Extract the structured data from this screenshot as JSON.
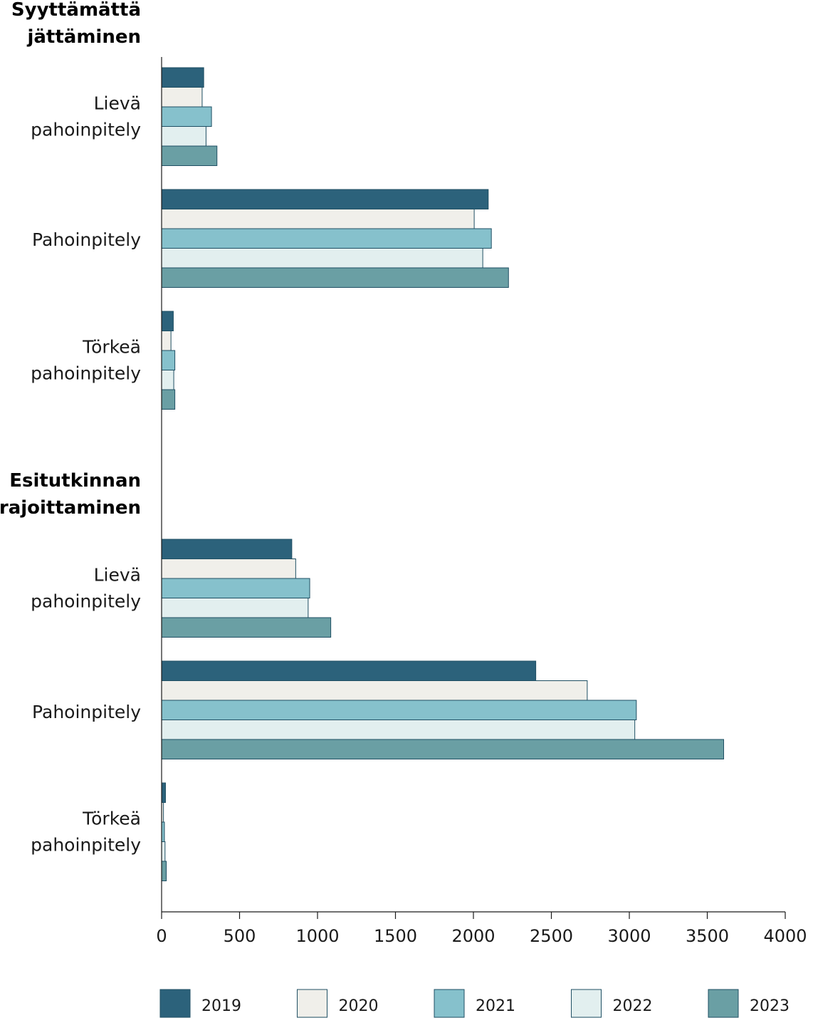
{
  "chart_data": {
    "type": "bar",
    "orientation": "horizontal",
    "xlim": [
      0,
      4000
    ],
    "xticks": [
      "0",
      "500",
      "1000",
      "1500",
      "2000",
      "2500",
      "3000",
      "3500",
      "4000"
    ],
    "series": [
      {
        "name": "2019",
        "color": "#2c627b"
      },
      {
        "name": "2020",
        "color": "#f0efea"
      },
      {
        "name": "2021",
        "color": "#86c1cc"
      },
      {
        "name": "2022",
        "color": "#e2efef"
      },
      {
        "name": "2023",
        "color": "#6a9fa4"
      }
    ],
    "groups": [
      {
        "title": [
          "Syyttämättä",
          "jättäminen"
        ],
        "categories": [
          {
            "label": [
              "Lievä",
              "pahoinpitely"
            ],
            "values": [
              270,
              260,
              320,
              285,
              355
            ]
          },
          {
            "label": [
              "Pahoinpitely"
            ],
            "values": [
              2095,
              2005,
              2115,
              2060,
              2225
            ]
          },
          {
            "label": [
              "Törkeä",
              "pahoinpitely"
            ],
            "values": [
              75,
              60,
              85,
              78,
              85
            ]
          }
        ]
      },
      {
        "title": [
          "Esitutkinnan",
          "rajoittaminen"
        ],
        "categories": [
          {
            "label": [
              "Lievä",
              "pahoinpitely"
            ],
            "values": [
              835,
              860,
              950,
              940,
              1085
            ]
          },
          {
            "label": [
              "Pahoinpitely"
            ],
            "values": [
              2400,
              2730,
              3045,
              3035,
              3605
            ]
          },
          {
            "label": [
              "Törkeä",
              "pahoinpitely"
            ],
            "values": [
              25,
              12,
              18,
              22,
              30
            ]
          }
        ]
      }
    ],
    "legend_position": "bottom"
  }
}
